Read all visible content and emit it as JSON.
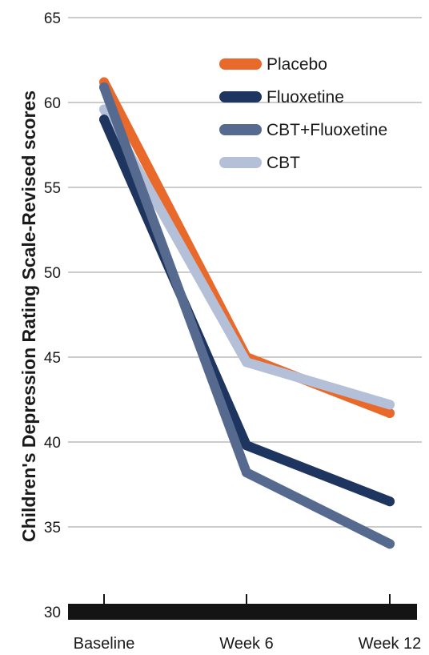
{
  "chart_data": {
    "type": "line",
    "title": "",
    "xlabel": "",
    "ylabel": "Children's Depression Rating Scale-Revised scores",
    "categories": [
      "Baseline",
      "Week 6",
      "Week 12"
    ],
    "ylim": [
      30,
      65
    ],
    "yticks": [
      30,
      35,
      40,
      45,
      50,
      55,
      60,
      65
    ],
    "grid": true,
    "legend_position": "top-right",
    "series": [
      {
        "name": "Placebo",
        "color": "#e8692a",
        "values": [
          61.2,
          45.0,
          41.7
        ]
      },
      {
        "name": "Fluoxetine",
        "color": "#1e3560",
        "values": [
          59.0,
          39.8,
          36.5
        ]
      },
      {
        "name": "CBT+Fluoxetine",
        "color": "#56698f",
        "values": [
          60.9,
          38.2,
          34.0
        ]
      },
      {
        "name": "CBT",
        "color": "#b4bfd8",
        "values": [
          59.6,
          44.7,
          42.2
        ]
      }
    ]
  }
}
